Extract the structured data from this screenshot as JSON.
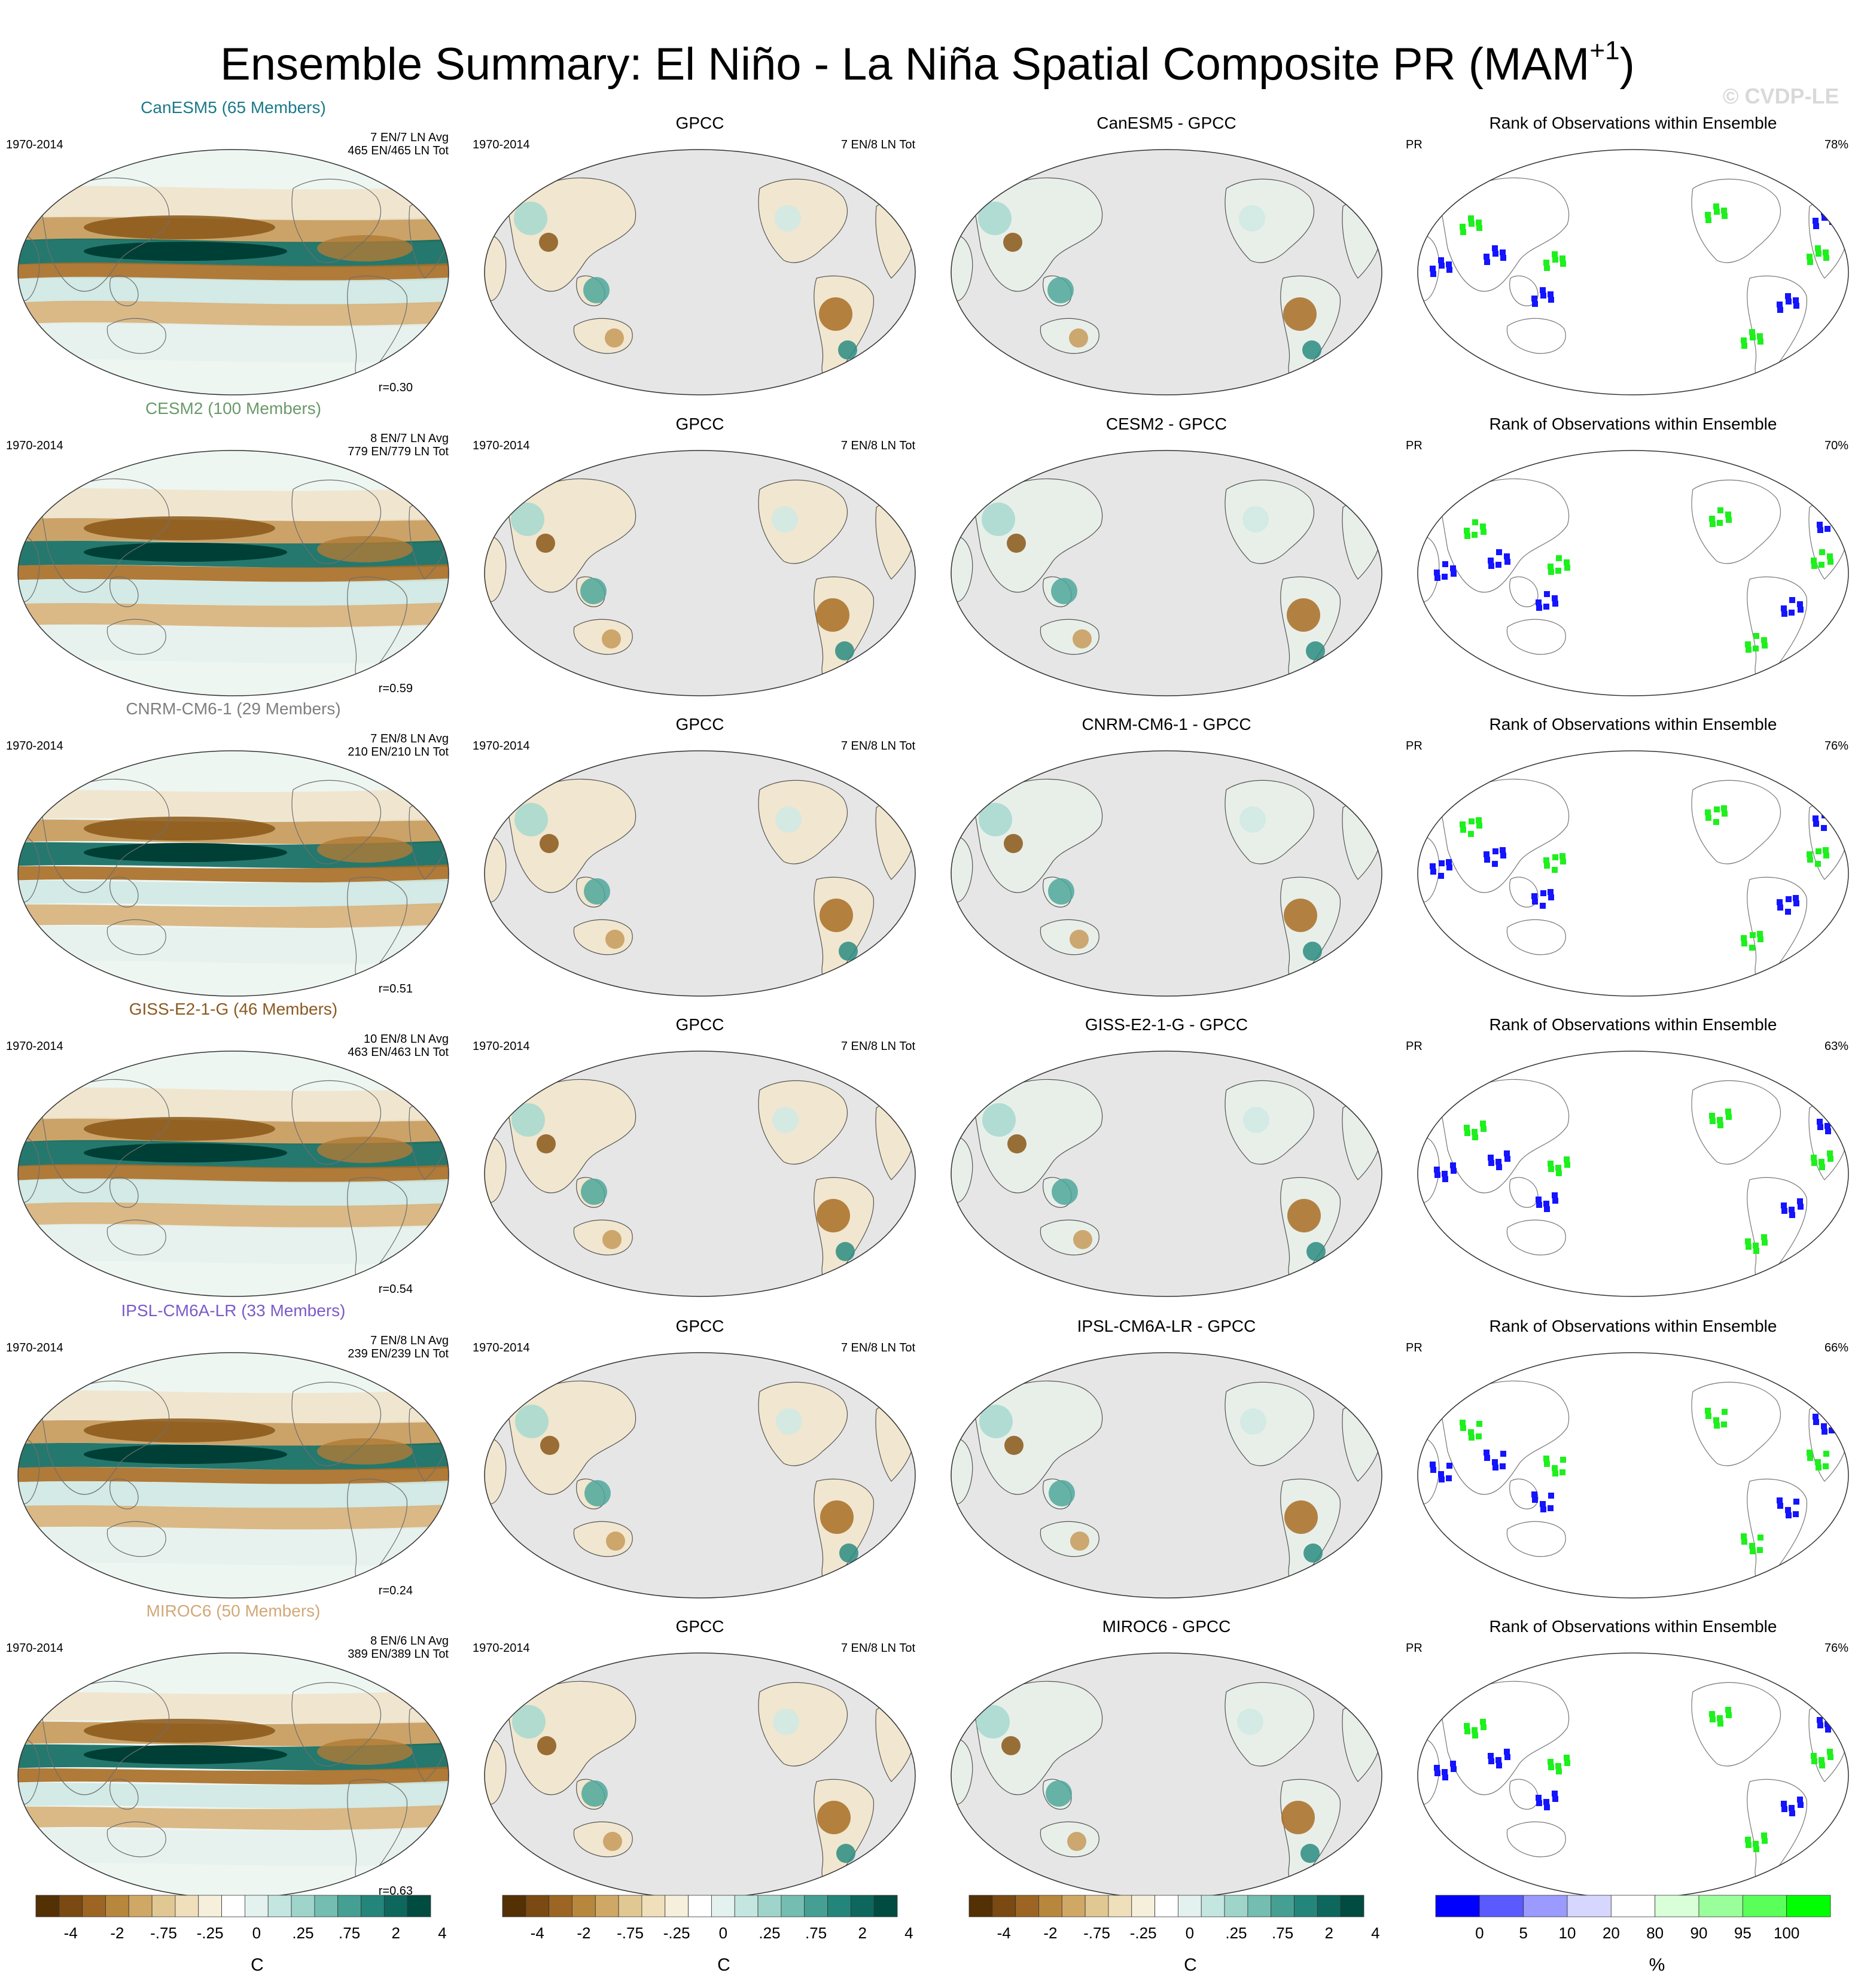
{
  "title": {
    "main": "Ensemble Summary: El Niño - La Niña Spatial Composite PR (MAM",
    "sup": "+1",
    "close": ")"
  },
  "watermark": "© CVDP-LE",
  "colors": {
    "brown_dark": "#5a3710",
    "brown": "#a86d25",
    "tan": "#dcc08a",
    "cream": "#f4ecd9",
    "teal_light": "#cfe9e4",
    "teal": "#4fa79b",
    "teal_dark": "#0c5c52",
    "rank_blue": "#1414ff",
    "rank_green": "#1ef01e",
    "land_gray": "#e6e6e6"
  },
  "column_titles": {
    "obs": "GPCC",
    "rank": "Rank of Observations within Ensemble"
  },
  "rows": [
    {
      "model": "CanESM5 (65 Members)",
      "model_color": "#1b7a8a",
      "period": "1970-2014",
      "counts": "7 EN/7 LN Avg",
      "tot": "465 EN/465 LN Tot",
      "r": "r=0.30",
      "obs_period": "1970-2014",
      "obs_tot": "7 EN/8 LN Tot",
      "diff": "CanESM5 - GPCC",
      "rank_var": "PR",
      "rank_pct": "78%"
    },
    {
      "model": "CESM2 (100 Members)",
      "model_color": "#6a9a6a",
      "period": "1970-2014",
      "counts": "8 EN/7 LN Avg",
      "tot": "779 EN/779 LN Tot",
      "r": "r=0.59",
      "obs_period": "1970-2014",
      "obs_tot": "7 EN/8 LN Tot",
      "diff": "CESM2 - GPCC",
      "rank_var": "PR",
      "rank_pct": "70%"
    },
    {
      "model": "CNRM-CM6-1 (29 Members)",
      "model_color": "#7f7f7f",
      "period": "1970-2014",
      "counts": "7 EN/8 LN Avg",
      "tot": "210 EN/210 LN Tot",
      "r": "r=0.51",
      "obs_period": "1970-2014",
      "obs_tot": "7 EN/8 LN Tot",
      "diff": "CNRM-CM6-1 - GPCC",
      "rank_var": "PR",
      "rank_pct": "76%"
    },
    {
      "model": "GISS-E2-1-G (46 Members)",
      "model_color": "#8a5a22",
      "period": "1970-2014",
      "counts": "10 EN/8 LN Avg",
      "tot": "463 EN/463 LN Tot",
      "r": "r=0.54",
      "obs_period": "1970-2014",
      "obs_tot": "7 EN/8 LN Tot",
      "diff": "GISS-E2-1-G - GPCC",
      "rank_var": "PR",
      "rank_pct": "63%"
    },
    {
      "model": "IPSL-CM6A-LR (33 Members)",
      "model_color": "#7b5bc9",
      "period": "1970-2014",
      "counts": "7 EN/8 LN Avg",
      "tot": "239 EN/239 LN Tot",
      "r": "r=0.24",
      "obs_period": "1970-2014",
      "obs_tot": "7 EN/8 LN Tot",
      "diff": "IPSL-CM6A-LR - GPCC",
      "rank_var": "PR",
      "rank_pct": "66%"
    },
    {
      "model": "MIROC6 (50 Members)",
      "model_color": "#d2a878",
      "period": "1970-2014",
      "counts": "8 EN/6 LN Avg",
      "tot": "389 EN/389 LN Tot",
      "r": "r=0.63",
      "obs_period": "1970-2014",
      "obs_tot": "7 EN/8 LN Tot",
      "diff": "MIROC6 - GPCC",
      "rank_var": "PR",
      "rank_pct": "76%"
    }
  ],
  "colorbars": [
    {
      "unit": "C",
      "ticks": [
        "-4",
        "-2",
        "-.75",
        "-.25",
        "0",
        ".25",
        ".75",
        "2",
        "4"
      ]
    },
    {
      "unit": "C",
      "ticks": [
        "-4",
        "-2",
        "-.75",
        "-.25",
        "0",
        ".25",
        ".75",
        "2",
        "4"
      ]
    },
    {
      "unit": "C",
      "ticks": [
        "-4",
        "-2",
        "-.75",
        "-.25",
        "0",
        ".25",
        ".75",
        "2",
        "4"
      ]
    },
    {
      "unit": "%",
      "ticks": [
        "0",
        "5",
        "10",
        "20",
        "80",
        "90",
        "95",
        "100"
      ]
    }
  ],
  "div_palette": [
    "#543005",
    "#7a4a12",
    "#9c6524",
    "#b8873e",
    "#cfa865",
    "#e1c792",
    "#efdfbb",
    "#f6efdc",
    "#ffffff",
    "#e3f2ef",
    "#c4e6e0",
    "#9fd4cb",
    "#73bdb1",
    "#45a093",
    "#24857a",
    "#0e675d",
    "#004c41"
  ],
  "rank_palette": [
    "#0000ff",
    "#5a5aff",
    "#9a9aff",
    "#d6d6ff",
    "#ffffff",
    "#d8ffd8",
    "#9aff9a",
    "#5aff5a",
    "#00ff00"
  ]
}
